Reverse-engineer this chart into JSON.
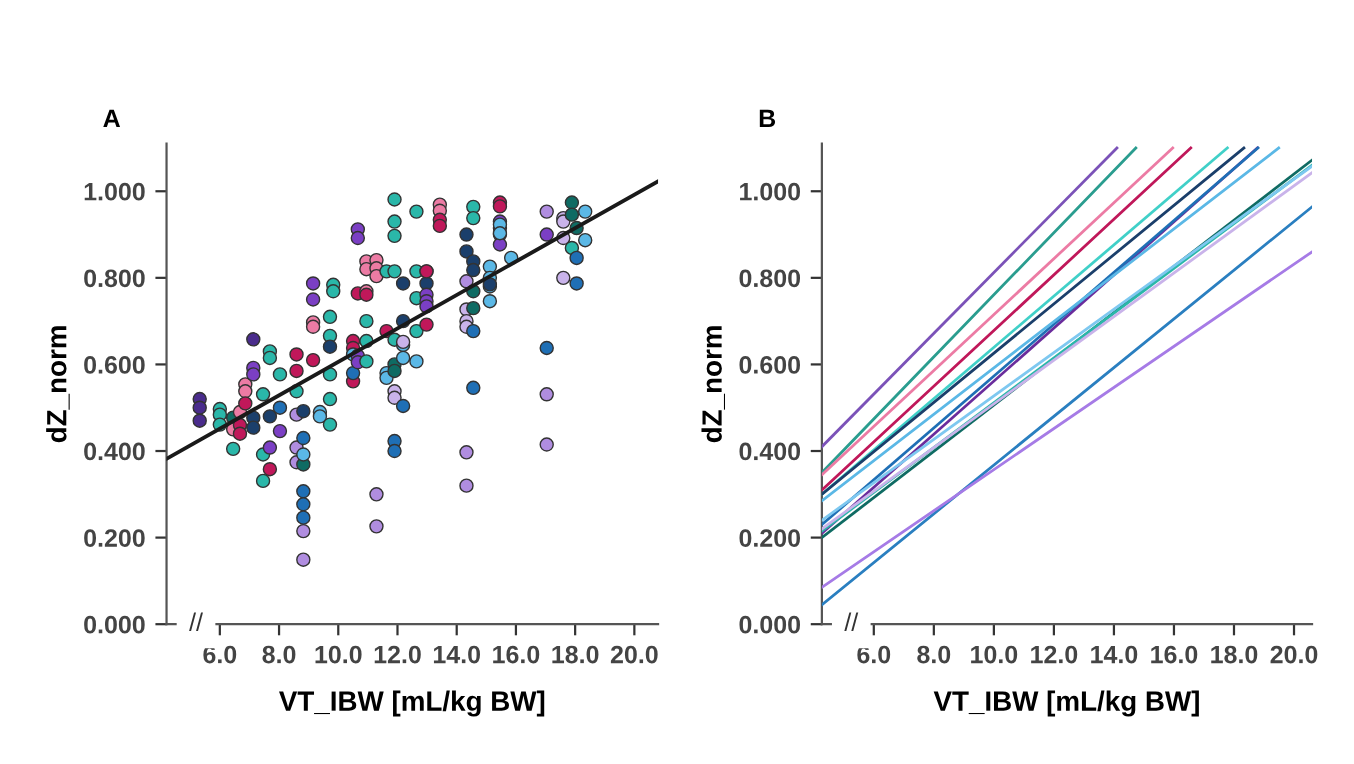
{
  "chart_data": [
    {
      "type": "scatter",
      "title": "A",
      "xlabel": "VT_IBW [mL/kg BW]",
      "ylabel": "dZ_norm",
      "xlim": [
        4.2,
        20.8
      ],
      "ylim": [
        0,
        1.11
      ],
      "xticks": [
        {
          "value": 6,
          "label": "6.0"
        },
        {
          "value": 8,
          "label": "8.0"
        },
        {
          "value": 10,
          "label": "10.0"
        },
        {
          "value": 12,
          "label": "12.0"
        },
        {
          "value": 14,
          "label": "14.0"
        },
        {
          "value": 16,
          "label": "16.0"
        },
        {
          "value": 18,
          "label": "18.0"
        },
        {
          "value": 20,
          "label": "20.0"
        }
      ],
      "yticks": [
        {
          "value": 0,
          "label": "0.000"
        },
        {
          "value": 0.2,
          "label": "0.200"
        },
        {
          "value": 0.4,
          "label": "0.400"
        },
        {
          "value": 0.6,
          "label": "0.600"
        },
        {
          "value": 0.8,
          "label": "0.800"
        },
        {
          "value": 1.0,
          "label": "1.000"
        }
      ],
      "annotations": [
        "//"
      ],
      "grid": false,
      "legend": false,
      "series": [
        {
          "type": "scatter",
          "marker": "circle",
          "x": [
            5.32,
            5.32,
            5.32,
            6.0,
            6.0,
            6.0,
            6.45,
            6.45,
            6.45,
            6.68,
            6.68,
            6.68,
            6.86,
            6.86,
            6.86,
            7.13,
            7.13,
            7.13,
            7.13,
            7.13,
            7.46,
            7.46,
            7.46,
            7.69,
            7.69,
            7.69,
            7.69,
            7.69,
            8.03,
            8.03,
            8.03,
            8.59,
            8.59,
            8.59,
            8.59,
            8.59,
            8.59,
            8.82,
            8.82,
            8.82,
            8.82,
            8.82,
            8.82,
            8.82,
            8.82,
            8.82,
            9.15,
            9.15,
            9.15,
            9.15,
            9.15,
            9.38,
            9.38,
            9.72,
            9.72,
            9.72,
            9.72,
            9.72,
            9.72,
            9.83,
            9.83,
            10.5,
            10.5,
            10.5,
            10.5,
            10.5,
            10.66,
            10.66,
            10.66,
            10.66,
            10.66,
            10.95,
            10.95,
            10.95,
            10.95,
            10.95,
            10.95,
            10.95,
            11.29,
            11.29,
            11.29,
            11.29,
            11.29,
            11.63,
            11.63,
            11.63,
            11.63,
            11.9,
            11.9,
            11.9,
            11.9,
            11.9,
            11.9,
            11.9,
            11.9,
            11.9,
            11.9,
            11.9,
            12.19,
            12.19,
            12.19,
            12.19,
            12.19,
            12.19,
            12.64,
            12.64,
            12.64,
            12.64,
            12.64,
            12.98,
            12.98,
            12.98,
            12.98,
            12.98,
            12.98,
            12.98,
            13.43,
            13.43,
            13.43,
            13.43,
            14.33,
            14.33,
            14.33,
            14.33,
            14.33,
            14.33,
            14.33,
            14.33,
            14.56,
            14.56,
            14.56,
            14.56,
            14.56,
            14.56,
            14.56,
            14.56,
            15.12,
            15.12,
            15.12,
            15.12,
            15.12,
            15.46,
            15.46,
            15.46,
            15.46,
            15.46,
            15.46,
            15.46,
            15.46,
            15.84,
            17.04,
            17.04,
            17.04,
            17.04,
            17.04,
            17.6,
            17.6,
            17.6,
            17.6,
            17.89,
            17.89,
            17.89,
            18.05,
            18.05,
            18.05,
            18.34,
            18.34
          ],
          "values": [
            0.52,
            0.5,
            0.47,
            0.497,
            0.484,
            0.461,
            0.405,
            0.477,
            0.45,
            0.49,
            0.46,
            0.44,
            0.554,
            0.538,
            0.51,
            0.658,
            0.592,
            0.577,
            0.477,
            0.454,
            0.392,
            0.331,
            0.531,
            0.63,
            0.615,
            0.48,
            0.358,
            0.408,
            0.577,
            0.446,
            0.5,
            0.623,
            0.585,
            0.538,
            0.484,
            0.408,
            0.374,
            0.492,
            0.369,
            0.43,
            0.307,
            0.277,
            0.246,
            0.215,
            0.149,
            0.392,
            0.787,
            0.75,
            0.697,
            0.687,
            0.61,
            0.49,
            0.48,
            0.71,
            0.666,
            0.577,
            0.52,
            0.461,
            0.641,
            0.784,
            0.769,
            0.654,
            0.638,
            0.561,
            0.58,
            0.623,
            0.912,
            0.892,
            0.764,
            0.62,
            0.605,
            0.7,
            0.838,
            0.82,
            0.769,
            0.761,
            0.654,
            0.607,
            0.841,
            0.822,
            0.804,
            0.3,
            0.226,
            0.58,
            0.569,
            0.815,
            0.677,
            0.981,
            0.93,
            0.897,
            0.815,
            0.657,
            0.6,
            0.585,
            0.538,
            0.523,
            0.423,
            0.4,
            0.7,
            0.504,
            0.645,
            0.652,
            0.787,
            0.615,
            0.953,
            0.815,
            0.753,
            0.607,
            0.677,
            0.815,
            0.787,
            0.761,
            0.746,
            0.734,
            0.815,
            0.692,
            0.969,
            0.955,
            0.934,
            0.92,
            0.9,
            0.861,
            0.792,
            0.727,
            0.7,
            0.687,
            0.397,
            0.32,
            0.964,
            0.938,
            0.838,
            0.818,
            0.769,
            0.73,
            0.677,
            0.546,
            0.826,
            0.8,
            0.78,
            0.746,
            0.785,
            0.974,
            0.965,
            0.93,
            0.915,
            0.9,
            0.877,
            0.923,
            0.903,
            0.846,
            0.953,
            0.9,
            0.638,
            0.531,
            0.415,
            0.938,
            0.93,
            0.8,
            0.892,
            0.974,
            0.946,
            0.869,
            0.846,
            0.787,
            0.915,
            0.953,
            0.887
          ],
          "colors": [
            "#4a2c8c",
            "#4a2c8c",
            "#4a2c8c",
            "#2ab7a9",
            "#2ab7a9",
            "#2ab7a9",
            "#2ab7a9",
            "#0f6b63",
            "#ec7ba4",
            "#ec7ba4",
            "#c0185a",
            "#c0185a",
            "#ec7ba4",
            "#ec7ba4",
            "#c0185a",
            "#4a2c8c",
            "#7b3fc4",
            "#7b3fc4",
            "#1b3f6b",
            "#1b3f6b",
            "#2ab7a9",
            "#2ab7a9",
            "#2ab7a9",
            "#2ab7a9",
            "#2ab7a9",
            "#1b3f6b",
            "#c0185a",
            "#7b3fc4",
            "#2ab7a9",
            "#7b3fc4",
            "#1f6fb5",
            "#c0185a",
            "#c0185a",
            "#2ab7a9",
            "#b08de0",
            "#b08de0",
            "#b08de0",
            "#1b3f6b",
            "#0f6b63",
            "#1f6fb5",
            "#1f6fb5",
            "#1f6fb5",
            "#1f6fb5",
            "#b08de0",
            "#b08de0",
            "#5bb8e6",
            "#7b3fc4",
            "#7b3fc4",
            "#ec7ba4",
            "#ec7ba4",
            "#c0185a",
            "#5bb8e6",
            "#5bb8e6",
            "#2ab7a9",
            "#2ab7a9",
            "#2ab7a9",
            "#2ab7a9",
            "#2ab7a9",
            "#1b3f6b",
            "#2ab7a9",
            "#2ab7a9",
            "#c0185a",
            "#c0185a",
            "#c0185a",
            "#1f6fb5",
            "#5bb8e6",
            "#7b3fc4",
            "#7b3fc4",
            "#c0185a",
            "#7b3fc4",
            "#7b3fc4",
            "#2ab7a9",
            "#ec7ba4",
            "#ec7ba4",
            "#ec7ba4",
            "#c0185a",
            "#2ab7a9",
            "#2ab7a9",
            "#ec7ba4",
            "#ec7ba4",
            "#ec7ba4",
            "#b08de0",
            "#b08de0",
            "#5bb8e6",
            "#5bb8e6",
            "#2ab7a9",
            "#c0185a",
            "#2ab7a9",
            "#2ab7a9",
            "#2ab7a9",
            "#2ab7a9",
            "#2ab7a9",
            "#0f6b63",
            "#0f6b63",
            "#c9b3ea",
            "#c9b3ea",
            "#1f6fb5",
            "#1f6fb5",
            "#1b3f6b",
            "#1f6fb5",
            "#5bb8e6",
            "#c9b3ea",
            "#1b3f6b",
            "#5bb8e6",
            "#2ab7a9",
            "#2ab7a9",
            "#2ab7a9",
            "#5bb8e6",
            "#2ab7a9",
            "#2ab7a9",
            "#1b3f6b",
            "#7b3fc4",
            "#7b3fc4",
            "#7b3fc4",
            "#c0185a",
            "#c0185a",
            "#ec7ba4",
            "#ec7ba4",
            "#c0185a",
            "#c0185a",
            "#1b3f6b",
            "#1b3f6b",
            "#b08de0",
            "#c9b3ea",
            "#c9b3ea",
            "#c9b3ea",
            "#b08de0",
            "#b08de0",
            "#2ab7a9",
            "#2ab7a9",
            "#1b3f6b",
            "#1b3f6b",
            "#0f6b63",
            "#0f6b63",
            "#1f6fb5",
            "#1f6fb5",
            "#5bb8e6",
            "#5bb8e6",
            "#5bb8e6",
            "#5bb8e6",
            "#1b3f6b",
            "#c0185a",
            "#c0185a",
            "#7b3fc4",
            "#7b3fc4",
            "#7b3fc4",
            "#7b3fc4",
            "#5bb8e6",
            "#5bb8e6",
            "#5bb8e6",
            "#b08de0",
            "#7b3fc4",
            "#1f6fb5",
            "#b08de0",
            "#b08de0",
            "#c9b3ea",
            "#c9b3ea",
            "#c9b3ea",
            "#c9b3ea",
            "#0f6b63",
            "#0f6b63",
            "#2ab7a9",
            "#1f6fb5",
            "#1f6fb5",
            "#0f6b63",
            "#5bb8e6",
            "#5bb8e6"
          ]
        },
        {
          "type": "line",
          "x": [
            4.2,
            20.8
          ],
          "values": [
            0.382,
            1.023
          ],
          "color": "#1a1a1a"
        }
      ]
    },
    {
      "type": "line",
      "title": "B",
      "xlabel": "VT_IBW [mL/kg BW]",
      "ylabel": "dZ_norm",
      "xlim": [
        4.27,
        20.6
      ],
      "ylim": [
        0,
        1.11
      ],
      "xticks": [
        {
          "value": 6,
          "label": "6.0"
        },
        {
          "value": 8,
          "label": "8.0"
        },
        {
          "value": 10,
          "label": "10.0"
        },
        {
          "value": 12,
          "label": "12.0"
        },
        {
          "value": 14,
          "label": "14.0"
        },
        {
          "value": 16,
          "label": "16.0"
        },
        {
          "value": 18,
          "label": "18.0"
        },
        {
          "value": 20,
          "label": "20.0"
        }
      ],
      "yticks": [
        {
          "value": 0,
          "label": "0.000"
        },
        {
          "value": 0.2,
          "label": "0.200"
        },
        {
          "value": 0.4,
          "label": "0.400"
        },
        {
          "value": 0.6,
          "label": "0.600"
        },
        {
          "value": 0.8,
          "label": "0.800"
        },
        {
          "value": 1.0,
          "label": "1.000"
        }
      ],
      "annotations": [
        "//"
      ],
      "grid": false,
      "legend": false,
      "marker": "none",
      "series": [
        {
          "x": [
            4.27,
            14.1
          ],
          "values": [
            0.41,
            1.1
          ],
          "color": "#7b52b8"
        },
        {
          "x": [
            4.27,
            14.73
          ],
          "values": [
            0.35,
            1.1
          ],
          "color": "#2a9d8f"
        },
        {
          "x": [
            4.27,
            15.96
          ],
          "values": [
            0.345,
            1.1
          ],
          "color": "#ec7ba4"
        },
        {
          "x": [
            4.27,
            16.56
          ],
          "values": [
            0.31,
            1.1
          ],
          "color": "#c0185a"
        },
        {
          "x": [
            4.27,
            17.78
          ],
          "values": [
            0.3,
            1.1
          ],
          "color": "#40d0c8"
        },
        {
          "x": [
            4.27,
            18.33
          ],
          "values": [
            0.3,
            1.1
          ],
          "color": "#1b3f6b"
        },
        {
          "x": [
            4.27,
            18.78
          ],
          "values": [
            0.21,
            1.1
          ],
          "color": "#6a2c9c"
        },
        {
          "x": [
            4.27,
            18.8
          ],
          "values": [
            0.23,
            1.1
          ],
          "color": "#1f6fb5"
        },
        {
          "x": [
            4.27,
            19.49
          ],
          "values": [
            0.285,
            1.1
          ],
          "color": "#5bb8e6"
        },
        {
          "x": [
            4.27,
            20.6
          ],
          "values": [
            0.2,
            1.072
          ],
          "color": "#0f6b63"
        },
        {
          "x": [
            4.27,
            20.6
          ],
          "values": [
            0.215,
            1.06
          ],
          "color": "#2ab7a9"
        },
        {
          "x": [
            4.27,
            20.6
          ],
          "values": [
            0.22,
            1.043
          ],
          "color": "#c9b3ea"
        },
        {
          "x": [
            4.27,
            20.6
          ],
          "values": [
            0.24,
            1.058
          ],
          "color": "#7ec8f0"
        },
        {
          "x": [
            4.27,
            20.6
          ],
          "values": [
            0.045,
            0.964
          ],
          "color": "#2a7fc0"
        },
        {
          "x": [
            4.27,
            20.6
          ],
          "values": [
            0.085,
            0.86
          ],
          "color": "#a67be6"
        }
      ]
    }
  ]
}
